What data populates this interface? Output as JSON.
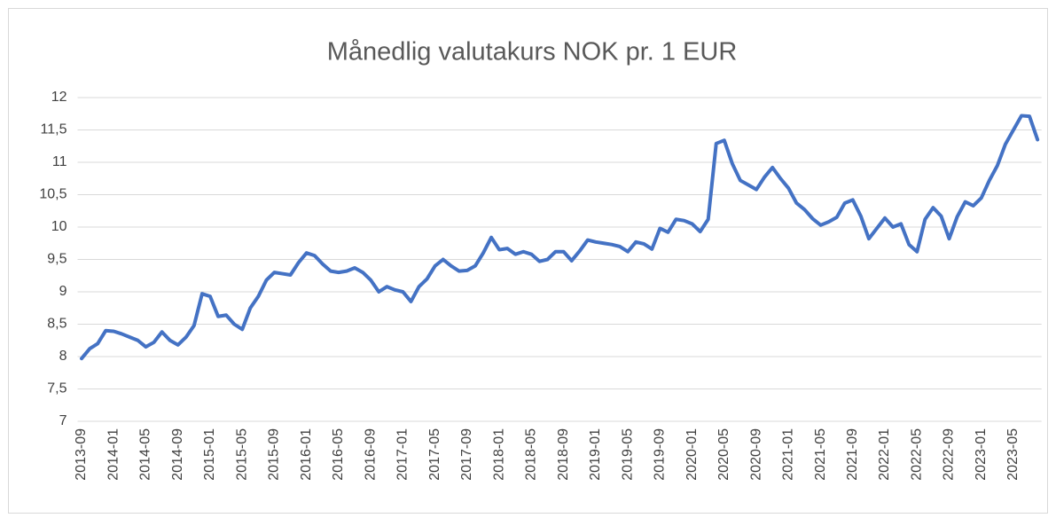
{
  "chart_data": {
    "type": "line",
    "title": "Månedlig valutakurs NOK pr. 1 EUR",
    "categories": [
      "2013-09",
      null,
      null,
      null,
      "2014-01",
      null,
      null,
      null,
      "2014-05",
      null,
      null,
      null,
      "2014-09",
      null,
      null,
      null,
      "2015-01",
      null,
      null,
      null,
      "2015-05",
      null,
      null,
      null,
      "2015-09",
      null,
      null,
      null,
      "2016-01",
      null,
      null,
      null,
      "2016-05",
      null,
      null,
      null,
      "2016-09",
      null,
      null,
      null,
      "2017-01",
      null,
      null,
      null,
      "2017-05",
      null,
      null,
      null,
      "2017-09",
      null,
      null,
      null,
      "2018-01",
      null,
      null,
      null,
      "2018-05",
      null,
      null,
      null,
      "2018-09",
      null,
      null,
      null,
      "2019-01",
      null,
      null,
      null,
      "2019-05",
      null,
      null,
      null,
      "2019-09",
      null,
      null,
      null,
      "2020-01",
      null,
      null,
      null,
      "2020-05",
      null,
      null,
      null,
      "2020-09",
      null,
      null,
      null,
      "2021-01",
      null,
      null,
      null,
      "2021-05",
      null,
      null,
      null,
      "2021-09",
      null,
      null,
      null,
      "2022-01",
      null,
      null,
      null,
      "2022-05",
      null,
      null,
      null,
      "2022-09",
      null,
      null,
      null,
      "2023-01",
      null,
      null,
      null,
      "2023-05",
      null,
      null,
      null
    ],
    "values": [
      7.97,
      8.12,
      8.2,
      8.4,
      8.39,
      8.35,
      8.3,
      8.25,
      8.15,
      8.22,
      8.38,
      8.25,
      8.18,
      8.3,
      8.48,
      8.97,
      8.93,
      8.62,
      8.64,
      8.5,
      8.42,
      8.75,
      8.93,
      9.18,
      9.3,
      9.28,
      9.26,
      9.45,
      9.6,
      9.56,
      9.43,
      9.32,
      9.3,
      9.32,
      9.37,
      9.3,
      9.18,
      9.0,
      9.08,
      9.03,
      9.0,
      8.85,
      9.08,
      9.2,
      9.4,
      9.5,
      9.4,
      9.32,
      9.33,
      9.4,
      9.6,
      9.84,
      9.65,
      9.67,
      9.58,
      9.62,
      9.58,
      9.47,
      9.5,
      9.62,
      9.62,
      9.48,
      9.63,
      9.8,
      9.77,
      9.75,
      9.73,
      9.7,
      9.62,
      9.77,
      9.74,
      9.66,
      9.98,
      9.92,
      10.12,
      10.1,
      10.05,
      9.93,
      10.12,
      11.29,
      11.34,
      10.98,
      10.72,
      10.65,
      10.58,
      10.77,
      10.92,
      10.75,
      10.6,
      10.37,
      10.27,
      10.13,
      10.03,
      10.08,
      10.15,
      10.37,
      10.42,
      10.17,
      9.82,
      9.98,
      10.14,
      10.0,
      10.05,
      9.73,
      9.62,
      10.12,
      10.3,
      10.17,
      9.82,
      10.16,
      10.39,
      10.33,
      10.45,
      10.72,
      10.95,
      11.28,
      11.5,
      11.72,
      11.71,
      11.35
    ],
    "color": "#4472c4",
    "ylim": [
      7,
      12
    ],
    "yticks": [
      7,
      {
        "value": 7.5,
        "label": "7,5"
      },
      8,
      {
        "value": 8.5,
        "label": "8,5"
      },
      9,
      {
        "value": 9.5,
        "label": "9,5"
      },
      10,
      {
        "value": 10.5,
        "label": "10,5"
      },
      11,
      {
        "value": 11.5,
        "label": "11,5"
      },
      12
    ],
    "grid": true
  }
}
